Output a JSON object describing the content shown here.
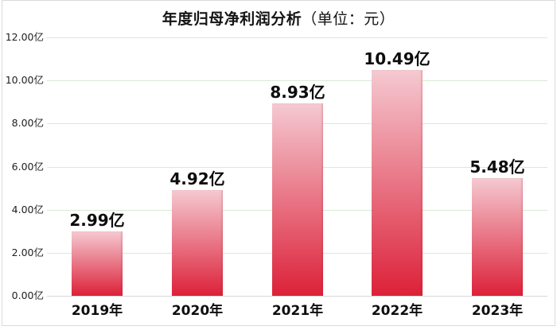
{
  "title": {
    "main": "年度归母净利润分析",
    "unit": "（单位：元）"
  },
  "chart_data": {
    "type": "bar",
    "title": "年度归母净利润分析（单位：元）",
    "categories": [
      "2019年",
      "2020年",
      "2021年",
      "2022年",
      "2023年"
    ],
    "values": [
      2.99,
      4.92,
      8.93,
      10.49,
      5.48
    ],
    "value_labels": [
      "2.99亿",
      "4.92亿",
      "8.93亿",
      "10.49亿",
      "5.48亿"
    ],
    "y_ticks": [
      {
        "value": 0,
        "label": "0.00亿"
      },
      {
        "value": 2,
        "label": "2.00亿"
      },
      {
        "value": 4,
        "label": "4.00亿"
      },
      {
        "value": 6,
        "label": "6.00亿"
      },
      {
        "value": 8,
        "label": "8.00亿"
      },
      {
        "value": 10,
        "label": "10.00亿"
      },
      {
        "value": 12,
        "label": "12.00亿"
      }
    ],
    "ylim": [
      0,
      12
    ],
    "grid": true,
    "legend": "none",
    "xlabel": "",
    "ylabel": "",
    "colors": {
      "bar_gradient_top": "#f5c9d1",
      "bar_gradient_bottom": "#dc2139",
      "gridline": "#d6ecd3",
      "baseline": "#d9d9d9",
      "text": "#0d0d0d"
    }
  }
}
